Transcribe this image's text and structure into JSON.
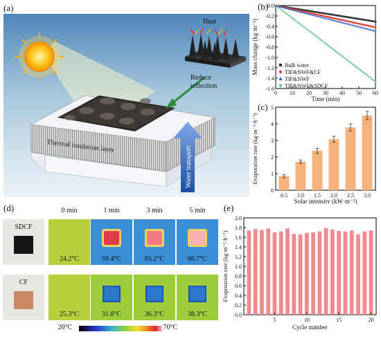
{
  "panels": {
    "a": "(a)",
    "b": "(b)",
    "c": "(c)",
    "d": "(d)",
    "e": "(e)"
  },
  "schematic": {
    "heat_label": "Heat",
    "reduce_label": "Reduce\nreflection",
    "insulation_label": "Thermal insulation layer",
    "water_label": "Water transport"
  },
  "chart_data": [
    {
      "id": "b",
      "type": "line",
      "xlabel": "Time (min)",
      "ylabel": "Mass change (kg·m⁻²)",
      "xlim": [
        0,
        60
      ],
      "ylim": [
        -1.6,
        0.0
      ],
      "xticks": [
        0,
        10,
        20,
        30,
        40,
        50,
        60
      ],
      "yticks": [
        0.0,
        -0.2,
        -0.4,
        -0.6,
        -0.8,
        -1.0,
        -1.2,
        -1.4,
        -1.6
      ],
      "legend_position": "bottom-left",
      "series": [
        {
          "name": "Bulk water",
          "color": "#333333",
          "marker": "square",
          "end": -0.31
        },
        {
          "name": "TIF&NWF&CF",
          "color": "#e8423a",
          "marker": "circle",
          "end": -0.42
        },
        {
          "name": "TIF&NWF",
          "color": "#2f5fc9",
          "marker": "triangle",
          "end": -0.49
        },
        {
          "name": "TIF&NWF&SDCF",
          "color": "#3fbf7f",
          "marker": "triangle-down",
          "end": -1.47
        }
      ]
    },
    {
      "id": "c",
      "type": "bar",
      "xlabel": "Solar intensity (kW·m⁻²)",
      "ylabel": "Evaporation rate (kg·m⁻²·h⁻¹)",
      "categories": [
        "0.5",
        "1.0",
        "1.5",
        "2.0",
        "2.5",
        "3.0"
      ],
      "values": [
        0.85,
        1.72,
        2.38,
        3.07,
        3.78,
        4.5
      ],
      "errors": [
        0.1,
        0.1,
        0.15,
        0.18,
        0.22,
        0.25
      ],
      "ylim": [
        0,
        5
      ],
      "yticks": [
        0,
        1,
        2,
        3,
        4,
        5
      ],
      "color": "#f5b27a"
    },
    {
      "id": "e",
      "type": "bar",
      "xlabel": "Cycle number",
      "ylabel": "Evaporation rate (kg·m⁻²·h⁻¹)",
      "categories": [
        "1",
        "2",
        "3",
        "4",
        "5",
        "6",
        "7",
        "8",
        "9",
        "10",
        "11",
        "12",
        "13",
        "14",
        "15",
        "16",
        "17",
        "18",
        "19",
        "20"
      ],
      "xtick_labels": [
        "5",
        "10",
        "15",
        "20"
      ],
      "values": [
        1.74,
        1.77,
        1.75,
        1.78,
        1.7,
        1.72,
        1.78,
        1.67,
        1.66,
        1.69,
        1.7,
        1.72,
        1.79,
        1.76,
        1.73,
        1.72,
        1.74,
        1.66,
        1.72,
        1.74
      ],
      "ylim": [
        0.0,
        2.0
      ],
      "yticks": [
        0.0,
        0.2,
        0.4,
        0.6,
        0.8,
        1.0,
        1.2,
        1.4,
        1.6,
        1.8,
        2.0
      ],
      "color": "#f08a8f"
    }
  ],
  "thermal": {
    "times": [
      "0 min",
      "1 min",
      "3 min",
      "5 min"
    ],
    "samples": [
      {
        "name": "SDCF",
        "temps": [
          "24.2°C",
          "59.4°C",
          "65.2°C",
          "66.7°C"
        ]
      },
      {
        "name": "CF",
        "temps": [
          "25.3°C",
          "31.8°C",
          "36.3°C",
          "38.3°C"
        ]
      }
    ],
    "scale": {
      "min": "20°C",
      "max": "70°C"
    }
  }
}
